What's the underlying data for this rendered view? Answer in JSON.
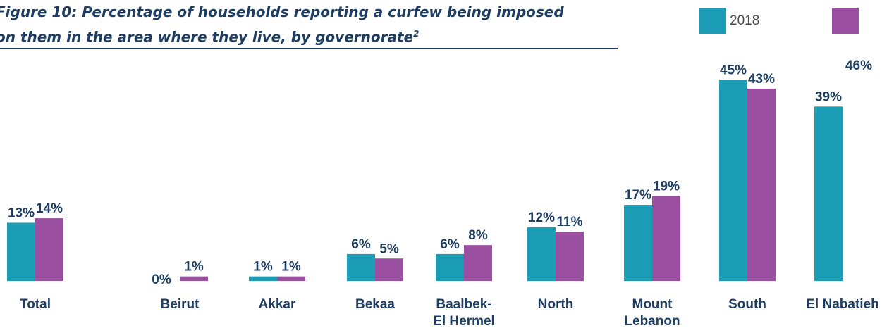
{
  "title": {
    "line1": "Figure 10: Percentage of households reporting a curfew being imposed",
    "line2": "on them in the area where they live, by governorate",
    "footnote_mark": "2"
  },
  "colors": {
    "series_2018": "#1b9db5",
    "series_2": "#9a4fa0",
    "text": "#1d3e62"
  },
  "legend": [
    {
      "label": "2018",
      "color": "#1b9db5"
    },
    {
      "label": "",
      "color": "#9a4fa0"
    }
  ],
  "chart_data": {
    "type": "bar",
    "categories": [
      "Total",
      "Beirut",
      "Akkar",
      "Bekaa",
      "Baalbek-\nEl Hermel",
      "North",
      "Mount\nLebanon",
      "South",
      "El Nabatieh"
    ],
    "series": [
      {
        "name": "2018",
        "color": "#1b9db5",
        "values": [
          13,
          0,
          1,
          6,
          6,
          12,
          17,
          45,
          39
        ],
        "labels": [
          "13%",
          "0%",
          "1%",
          "6%",
          "6%",
          "12%",
          "17%",
          "45%",
          "39%"
        ]
      },
      {
        "color": "#9a4fa0",
        "values": [
          14,
          1,
          1,
          5,
          8,
          11,
          19,
          43,
          46
        ],
        "labels": [
          "14%",
          "1%",
          "1%",
          "5%",
          "8%",
          "11%",
          "19%",
          "43%",
          "46%"
        ]
      }
    ],
    "ylim": [
      0,
      50
    ],
    "grid": false,
    "legend_position": "top-right"
  }
}
